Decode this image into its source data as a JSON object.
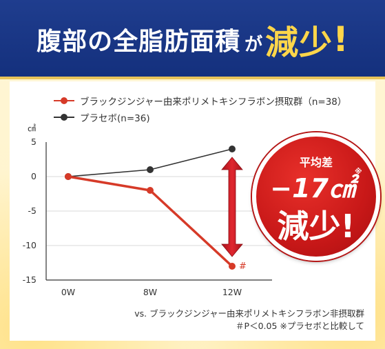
{
  "headline": {
    "main": "腹部の全脂肪面積",
    "particle": "が",
    "accent": "減少",
    "exclamation": "!"
  },
  "chart_data": {
    "type": "line",
    "unit_label": "㎠",
    "categories": [
      "0W",
      "8W",
      "12W"
    ],
    "ylim": [
      -15,
      5
    ],
    "yticks": [
      "5",
      "0",
      "-5",
      "-10",
      "-15"
    ],
    "grid": true,
    "legend_position": "top",
    "series": [
      {
        "name": "ブラックジンジャー由来ポリメトキシフラボン摂取群（n=38）",
        "values": [
          0,
          -2,
          -13
        ],
        "color": "#d63a28"
      },
      {
        "name": "プラセボ(n=36)",
        "values": [
          0,
          1,
          4
        ],
        "color": "#333333"
      }
    ],
    "annotation": "#",
    "footnotes": [
      "vs. ブラックジンジャー由来ポリメトキシフラボン非摂取群",
      "＃P＜0.05 ※プラセボと比較して"
    ]
  },
  "badge": {
    "label": "平均差",
    "value": "−17㎠",
    "value_mark": "※",
    "text": "減少!"
  },
  "colors": {
    "banner": "#1a3a8a",
    "accent": "#ffd64a",
    "treatment": "#d63a28",
    "placebo": "#333333",
    "arrow": "#d41e2a",
    "badge": "#c81818"
  }
}
